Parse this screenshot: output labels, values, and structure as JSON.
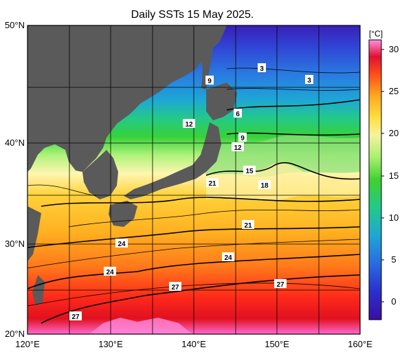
{
  "title": "Daily SSTs 15 May 2025.",
  "axes": {
    "lat_labels": [
      "50°N",
      "40°N",
      "30°N",
      "20°N"
    ],
    "lon_labels": [
      "120°E",
      "130°E",
      "140°E",
      "150°E",
      "160°E"
    ]
  },
  "colorbar": {
    "unit": "[°C]",
    "ticks": [
      "30",
      "25",
      "20",
      "15",
      "10",
      "5",
      "0"
    ]
  },
  "contour_labels": [
    "3",
    "3",
    "9",
    "6",
    "12",
    "9",
    "12",
    "15",
    "18",
    "21",
    "21",
    "24",
    "24",
    "24",
    "27",
    "27",
    "27"
  ],
  "colors": {
    "land": "#5a5a5a",
    "grid": "#000000",
    "sst_scale": [
      "#3a1fb8",
      "#2a5fe0",
      "#1ea6d6",
      "#23c98a",
      "#37d13a",
      "#aef27a",
      "#fff6b0",
      "#ffd23a",
      "#ff9a1a",
      "#ff3a1a",
      "#e0101a",
      "#ff7ad0"
    ]
  }
}
